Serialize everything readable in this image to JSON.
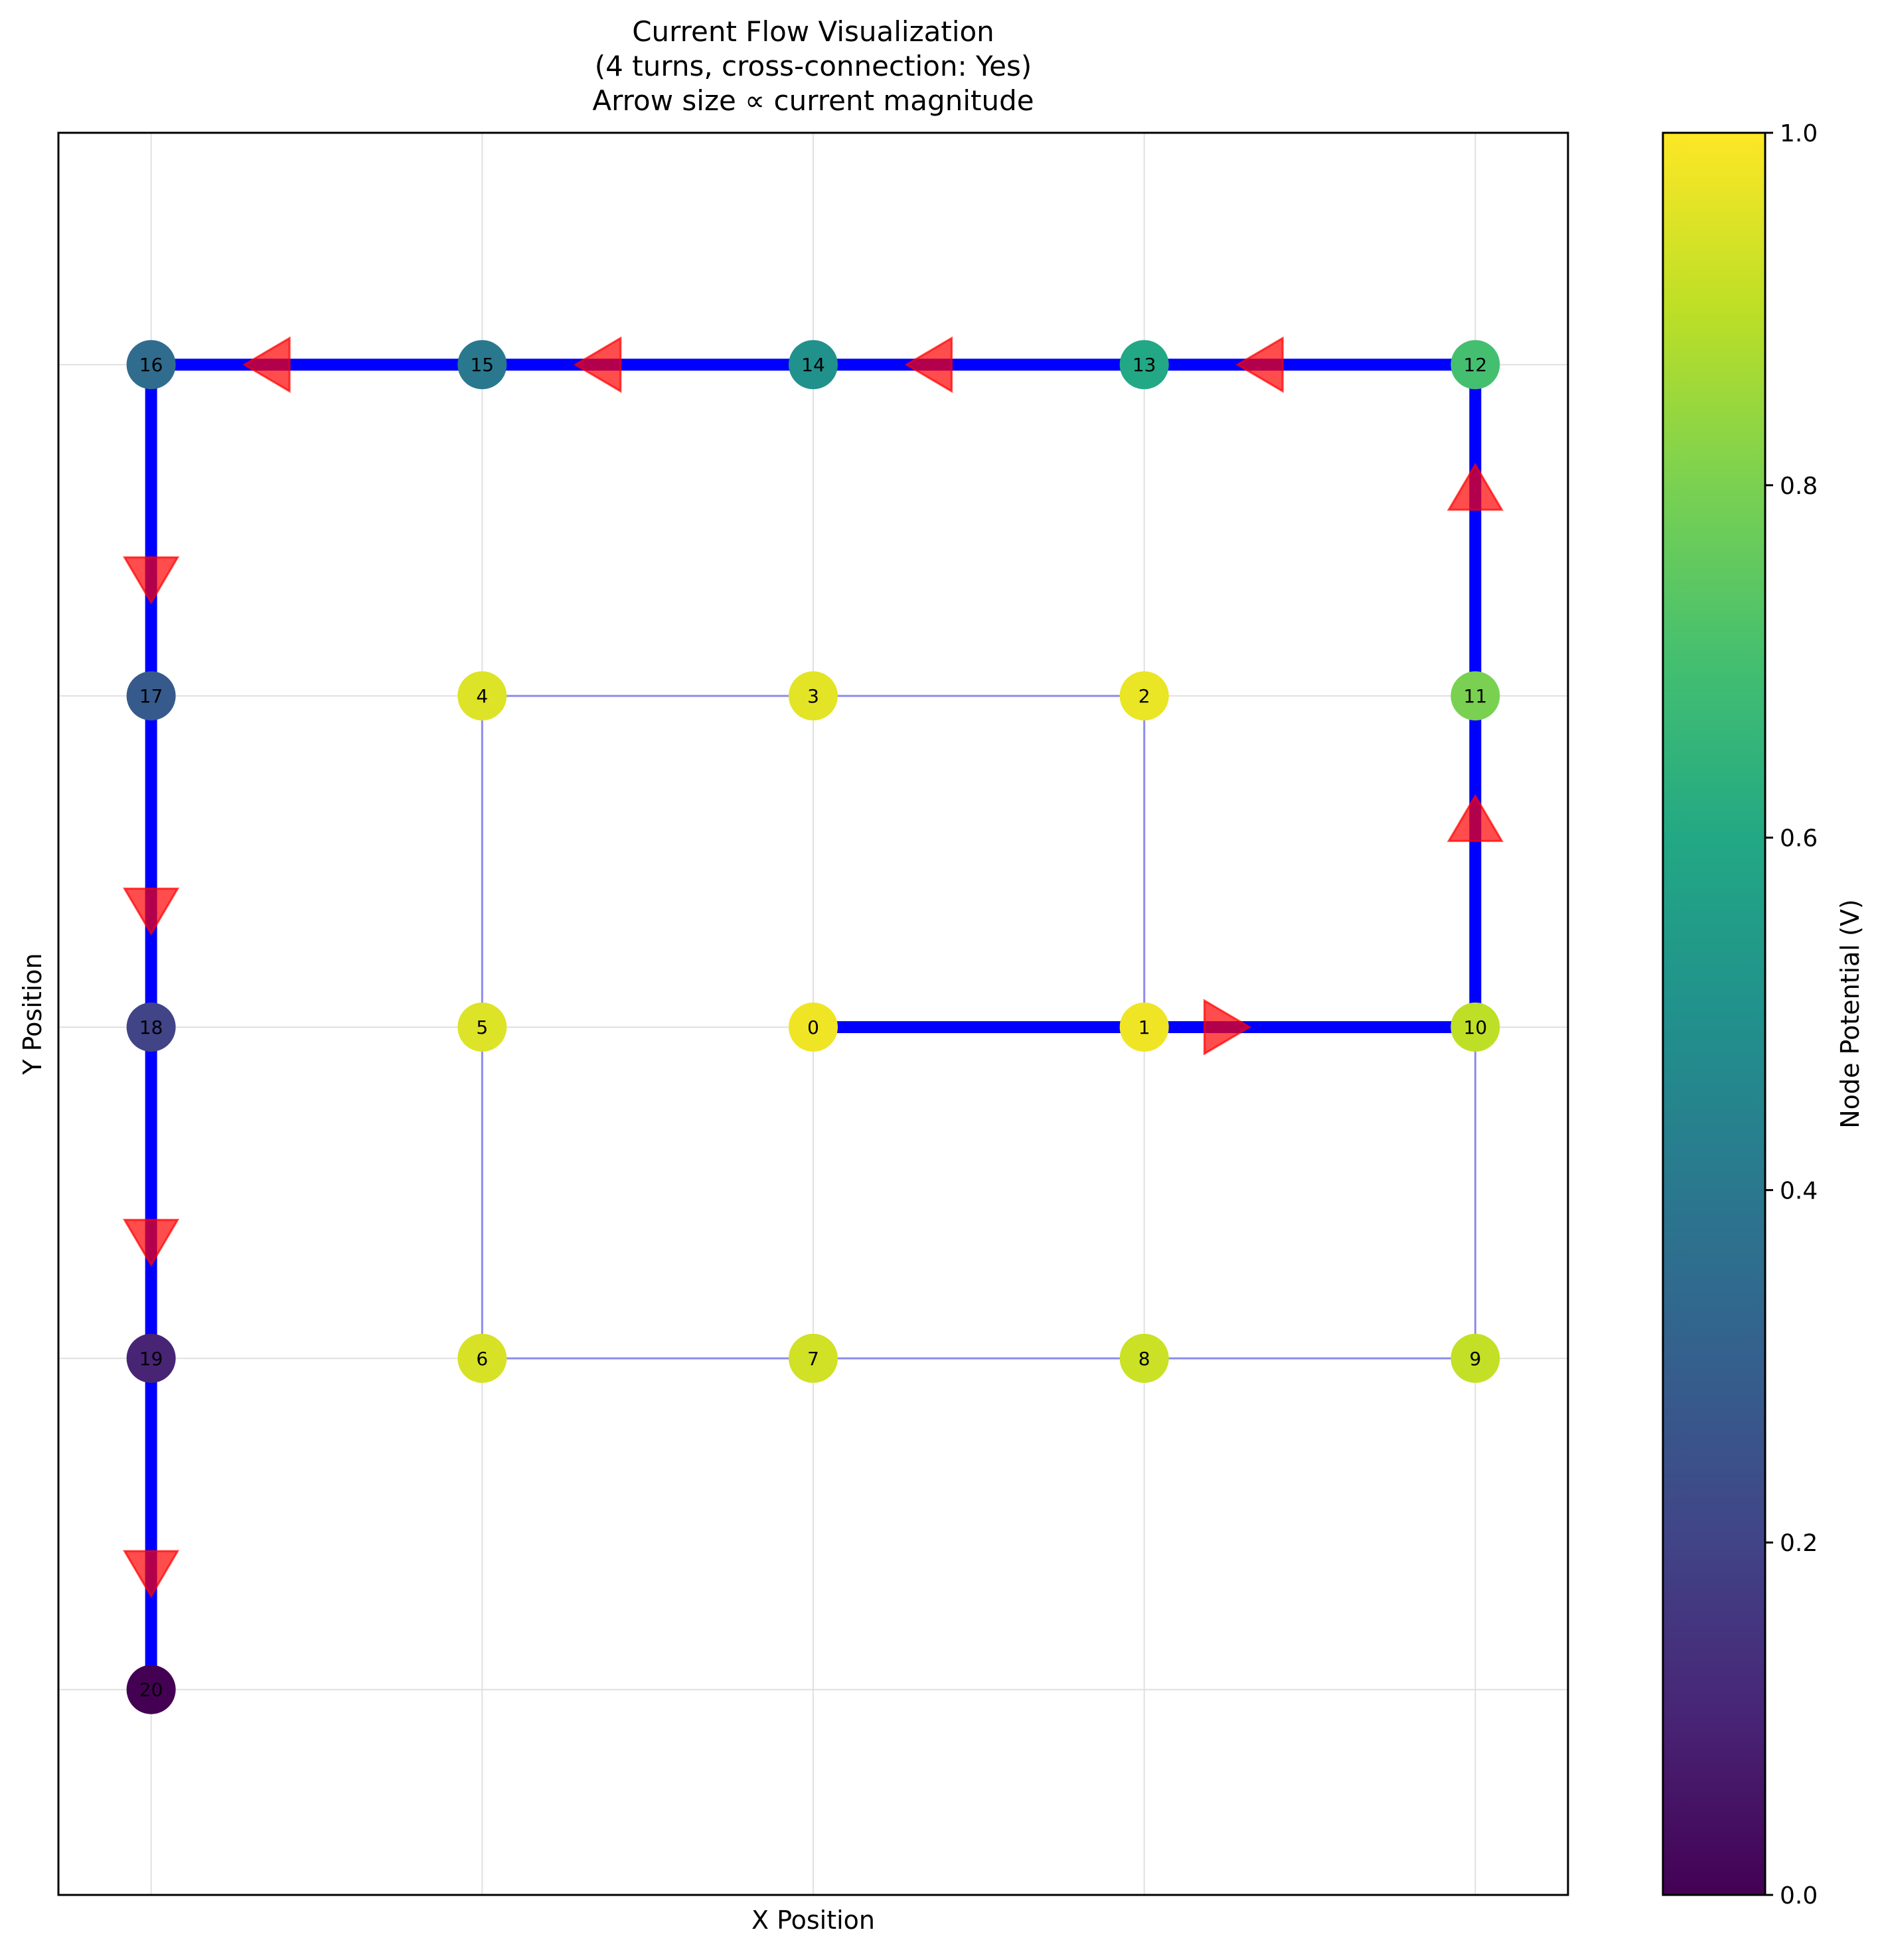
{
  "chart_data": {
    "type": "network",
    "title": [
      "Current Flow Visualization",
      "(4 turns, cross-connection: Yes)",
      "Arrow size ∝ current magnitude"
    ],
    "xlabel": "X Position",
    "ylabel": "Y Position",
    "xlim": [
      -0.28,
      4.28
    ],
    "ylim": [
      -2.62,
      2.7
    ],
    "grid": true,
    "colorbar": {
      "label": "Node Potential (V)",
      "range": [
        0,
        1
      ],
      "ticks": [
        "0.0",
        "0.2",
        "0.4",
        "0.6",
        "0.8",
        "1.0"
      ],
      "colormap": "viridis"
    },
    "nodes": [
      {
        "id": "0",
        "x": 2,
        "y": 0,
        "v": 0.98
      },
      {
        "id": "1",
        "x": 3,
        "y": 0,
        "v": 0.98
      },
      {
        "id": "2",
        "x": 3,
        "y": 1,
        "v": 0.97
      },
      {
        "id": "3",
        "x": 2,
        "y": 1,
        "v": 0.96
      },
      {
        "id": "4",
        "x": 1,
        "y": 1,
        "v": 0.95
      },
      {
        "id": "5",
        "x": 1,
        "y": 0,
        "v": 0.95
      },
      {
        "id": "6",
        "x": 1,
        "y": -1,
        "v": 0.94
      },
      {
        "id": "7",
        "x": 2,
        "y": -1,
        "v": 0.93
      },
      {
        "id": "8",
        "x": 3,
        "y": -1,
        "v": 0.92
      },
      {
        "id": "9",
        "x": 4,
        "y": -1,
        "v": 0.91
      },
      {
        "id": "10",
        "x": 4,
        "y": 0,
        "v": 0.9
      },
      {
        "id": "11",
        "x": 4,
        "y": 1,
        "v": 0.8
      },
      {
        "id": "12",
        "x": 4,
        "y": 2,
        "v": 0.7
      },
      {
        "id": "13",
        "x": 3,
        "y": 2,
        "v": 0.6
      },
      {
        "id": "14",
        "x": 2,
        "y": 2,
        "v": 0.5
      },
      {
        "id": "15",
        "x": 1,
        "y": 2,
        "v": 0.4
      },
      {
        "id": "16",
        "x": 0,
        "y": 2,
        "v": 0.35
      },
      {
        "id": "17",
        "x": 0,
        "y": 1,
        "v": 0.28
      },
      {
        "id": "18",
        "x": 0,
        "y": 0,
        "v": 0.2
      },
      {
        "id": "19",
        "x": 0,
        "y": -1,
        "v": 0.1
      },
      {
        "id": "20",
        "x": 0,
        "y": -2,
        "v": 0.0
      }
    ],
    "strong_edges": [
      [
        "0",
        "1"
      ],
      [
        "1",
        "10"
      ],
      [
        "10",
        "11"
      ],
      [
        "11",
        "12"
      ],
      [
        "12",
        "13"
      ],
      [
        "13",
        "14"
      ],
      [
        "14",
        "15"
      ],
      [
        "15",
        "16"
      ],
      [
        "16",
        "17"
      ],
      [
        "17",
        "18"
      ],
      [
        "18",
        "19"
      ],
      [
        "19",
        "20"
      ]
    ],
    "weak_edges": [
      [
        "1",
        "2"
      ],
      [
        "2",
        "3"
      ],
      [
        "3",
        "4"
      ],
      [
        "4",
        "5"
      ],
      [
        "5",
        "6"
      ],
      [
        "6",
        "7"
      ],
      [
        "7",
        "8"
      ],
      [
        "8",
        "9"
      ],
      [
        "9",
        "10"
      ]
    ],
    "arrows": [
      {
        "x": 3.25,
        "y": 0,
        "dir": "right"
      },
      {
        "x": 4,
        "y": 0.63,
        "dir": "up"
      },
      {
        "x": 4,
        "y": 1.63,
        "dir": "up"
      },
      {
        "x": 3.35,
        "y": 2,
        "dir": "left"
      },
      {
        "x": 2.35,
        "y": 2,
        "dir": "left"
      },
      {
        "x": 1.35,
        "y": 2,
        "dir": "left"
      },
      {
        "x": 0.35,
        "y": 2,
        "dir": "left"
      },
      {
        "x": 0,
        "y": 1.35,
        "dir": "down"
      },
      {
        "x": 0,
        "y": 0.35,
        "dir": "down"
      },
      {
        "x": 0,
        "y": -0.65,
        "dir": "down"
      },
      {
        "x": 0,
        "y": -1.65,
        "dir": "down"
      }
    ],
    "colors": {
      "strong_edge": "#0000ff",
      "weak_edge": "#8c8cee",
      "arrow": "#ff0000",
      "grid": "#e0e0e0"
    }
  }
}
